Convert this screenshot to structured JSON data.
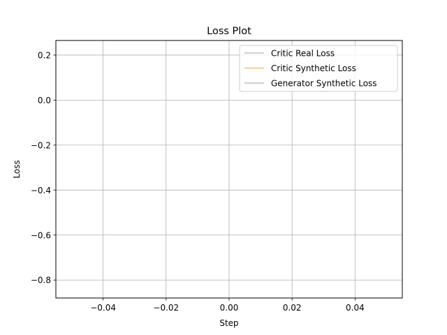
{
  "chart_data": {
    "type": "line",
    "title": "Loss Plot",
    "xlabel": "Step",
    "ylabel": "Loss",
    "xlim": [
      -0.055,
      0.055
    ],
    "ylim": [
      -0.88,
      0.265
    ],
    "xticks": [
      -0.04,
      -0.02,
      0.0,
      0.02,
      0.04
    ],
    "xtick_labels": [
      "−0.04",
      "−0.02",
      "0.00",
      "0.02",
      "0.04"
    ],
    "yticks": [
      0.2,
      0.0,
      -0.2,
      -0.4,
      -0.6,
      -0.8
    ],
    "ytick_labels": [
      "0.2",
      "0.0",
      "−0.2",
      "−0.4",
      "−0.6",
      "−0.8"
    ],
    "grid": true,
    "legend_position": "top-right",
    "series": [
      {
        "name": "Critic Real Loss",
        "color": "#7f7f7f",
        "x": [],
        "y": []
      },
      {
        "name": "Critic Synthetic Loss",
        "color": "#ff7f0e",
        "x": [],
        "y": []
      },
      {
        "name": "Generator Synthetic Loss",
        "color": "#7f7f7f",
        "x": [],
        "y": []
      }
    ]
  }
}
